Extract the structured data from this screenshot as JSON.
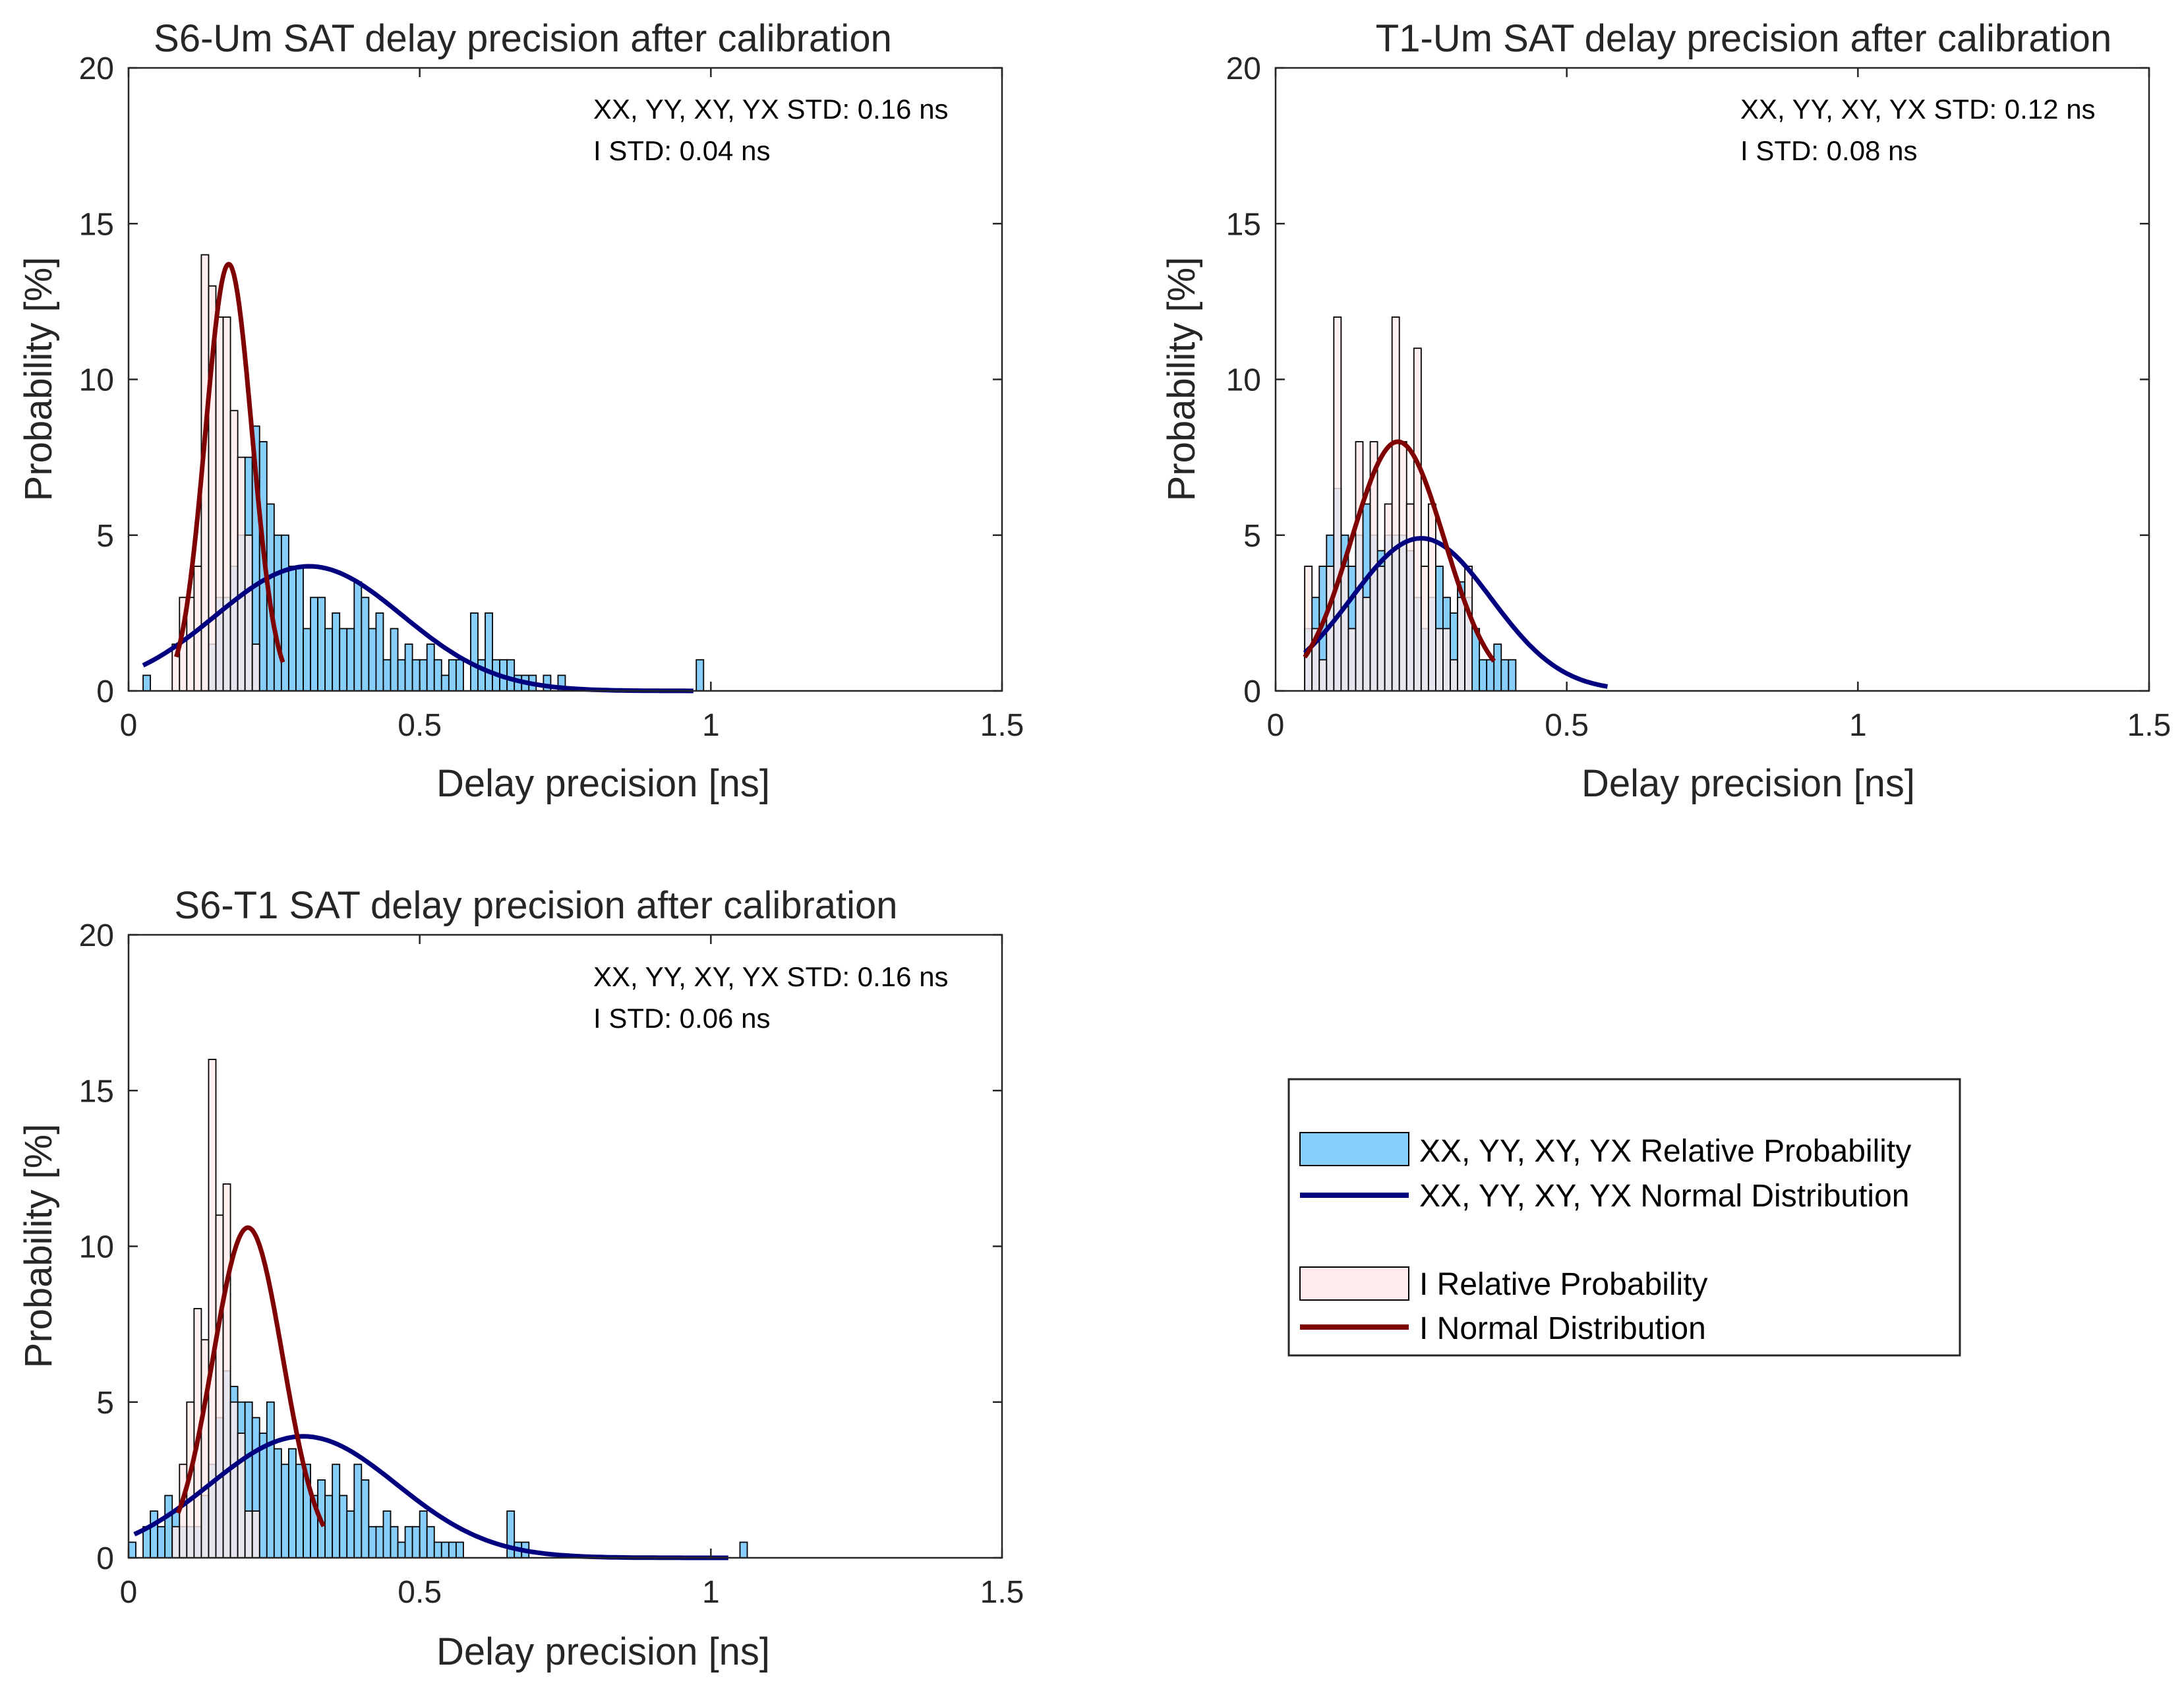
{
  "colors": {
    "pol_bar_fill": "#87CEFA",
    "i_bar_fill": "#FFEBEB",
    "pol_curve": "#00007F",
    "i_curve": "#7F0000",
    "axis": "#262626"
  },
  "legend": {
    "items": [
      {
        "label": "XX, YY, XY, YX Relative Probability",
        "kind": "bar",
        "color": "#87CEFA"
      },
      {
        "label": "XX, YY, XY, YX Normal Distribution",
        "kind": "line",
        "color": "#00007F"
      },
      {
        "label": "I Relative Probability",
        "kind": "bar",
        "color": "#FFEBEB"
      },
      {
        "label": "I Normal Distribution",
        "kind": "line",
        "color": "#7F0000"
      }
    ]
  },
  "chart_data": [
    {
      "type": "bar",
      "title": "S6-Um SAT delay precision after calibration",
      "xlabel": "Delay precision [ns]",
      "ylabel": "Probability [%]",
      "xlim": [
        0,
        1.5
      ],
      "ylim": [
        0,
        20
      ],
      "xticks": [
        "0",
        "0.5",
        "1",
        "1.5"
      ],
      "yticks": [
        "0",
        "5",
        "10",
        "15",
        "20"
      ],
      "bin_width": 0.0125,
      "annotations": [
        "XX, YY, XY, YX STD: 0.16 ns",
        "I STD: 0.04 ns"
      ],
      "series": [
        {
          "name": "XX, YY, XY, YX Relative Probability",
          "kind": "histogram",
          "x0": 0.025,
          "values": [
            0.5,
            0,
            0,
            0,
            0,
            0,
            0,
            0,
            0,
            1.5,
            3,
            3,
            4,
            5,
            7.5,
            8.5,
            8,
            6,
            5,
            5,
            4,
            4,
            2,
            3,
            3,
            2,
            2.5,
            2,
            2,
            3.5,
            3,
            2,
            2.5,
            1,
            2,
            1,
            1.5,
            1,
            1,
            1.5,
            1,
            0.5,
            1,
            1,
            0,
            2.5,
            1,
            2.5,
            1,
            1,
            1,
            0.5,
            0.5,
            0.5,
            0,
            0.5,
            0,
            0.5,
            0,
            0,
            0,
            0,
            0,
            0,
            0,
            0,
            0,
            0,
            0,
            0,
            0,
            0,
            0,
            0,
            0,
            0,
            1
          ]
        },
        {
          "name": "XX, YY, XY, YX Normal Distribution",
          "kind": "normal",
          "mean": 0.31,
          "peak": 4.0,
          "std": 0.16,
          "range": [
            0.025,
            0.97
          ]
        },
        {
          "name": "I Relative Probability",
          "kind": "histogram",
          "x0": 0.075,
          "values": [
            1.5,
            3,
            3,
            4,
            14,
            13,
            12,
            12,
            9,
            7.5,
            5,
            1.5
          ]
        },
        {
          "name": "I Normal Distribution",
          "kind": "normal",
          "mean": 0.172,
          "peak": 13.7,
          "std": 0.04,
          "range": [
            0.082,
            0.265
          ]
        }
      ]
    },
    {
      "type": "bar",
      "title": "T1-Um SAT delay precision after calibration",
      "xlabel": "Delay precision [ns]",
      "ylabel": "Probability [%]",
      "xlim": [
        0,
        1.5
      ],
      "ylim": [
        0,
        20
      ],
      "xticks": [
        "0",
        "0.5",
        "1",
        "1.5"
      ],
      "yticks": [
        "0",
        "5",
        "10",
        "15",
        "20"
      ],
      "bin_width": 0.0125,
      "annotations": [
        "XX, YY, XY, YX STD: 0.12 ns",
        "I STD: 0.08 ns"
      ],
      "series": [
        {
          "name": "XX, YY, XY, YX Relative Probability",
          "kind": "histogram",
          "x0": 0.05,
          "values": [
            2,
            3,
            4,
            5,
            6.5,
            5,
            4,
            5,
            6,
            5,
            4.5,
            5,
            5,
            5,
            4.5,
            3,
            2,
            3,
            4,
            3,
            2.5,
            3.5,
            3,
            2,
            1,
            1,
            1.5,
            1,
            1
          ]
        },
        {
          "name": "XX, YY, XY, YX Normal Distribution",
          "kind": "normal",
          "mean": 0.25,
          "peak": 4.9,
          "std": 0.12,
          "range": [
            0.05,
            0.57
          ]
        },
        {
          "name": "I Relative Probability",
          "kind": "histogram",
          "x0": 0.05,
          "values": [
            4,
            2,
            1,
            4,
            12,
            4,
            2,
            8,
            3,
            8,
            4,
            6,
            12,
            8,
            6,
            11,
            4,
            6,
            2,
            2,
            1,
            3,
            4
          ]
        },
        {
          "name": "I Normal Distribution",
          "kind": "normal",
          "mean": 0.21,
          "peak": 8.0,
          "std": 0.08,
          "range": [
            0.05,
            0.375
          ]
        }
      ]
    },
    {
      "type": "bar",
      "title": "S6-T1 SAT delay precision after calibration",
      "xlabel": "Delay precision [ns]",
      "ylabel": "Probability [%]",
      "xlim": [
        0,
        1.5
      ],
      "ylim": [
        0,
        20
      ],
      "xticks": [
        "0",
        "0.5",
        "1",
        "1.5"
      ],
      "yticks": [
        "0",
        "5",
        "10",
        "15",
        "20"
      ],
      "bin_width": 0.0125,
      "annotations": [
        "XX, YY, XY, YX STD: 0.16 ns",
        "I STD: 0.06 ns"
      ],
      "series": [
        {
          "name": "XX, YY, XY, YX Relative Probability",
          "kind": "histogram",
          "x0": 0.0,
          "values": [
            0.5,
            0,
            1,
            1.5,
            1,
            2,
            1.5,
            1,
            1,
            1,
            2,
            3,
            4.5,
            6,
            5.5,
            5,
            5,
            4.5,
            4,
            5,
            3.5,
            3,
            3.5,
            3,
            3,
            2,
            2.5,
            2,
            3,
            2,
            1.5,
            3,
            2.5,
            1,
            1,
            1.5,
            1,
            0.5,
            1,
            1,
            1.5,
            1,
            0.5,
            0.5,
            0.5,
            0.5,
            0,
            0,
            0,
            0,
            0,
            0,
            1.5,
            0.5,
            0.5,
            0,
            0,
            0,
            0,
            0,
            0,
            0,
            0,
            0,
            0,
            0,
            0,
            0,
            0,
            0,
            0,
            0,
            0,
            0,
            0,
            0,
            0,
            0,
            0,
            0,
            0,
            0,
            0,
            0,
            0.5
          ]
        },
        {
          "name": "XX, YY, XY, YX Normal Distribution",
          "kind": "normal",
          "mean": 0.3,
          "peak": 3.9,
          "std": 0.16,
          "range": [
            0.01,
            1.03
          ]
        },
        {
          "name": "I Relative Probability",
          "kind": "histogram",
          "x0": 0.075,
          "values": [
            1,
            3,
            5,
            8,
            7,
            16,
            11,
            12,
            5,
            4,
            1.5,
            1.5
          ]
        },
        {
          "name": "I Normal Distribution",
          "kind": "normal",
          "mean": 0.205,
          "peak": 10.6,
          "std": 0.06,
          "range": [
            0.085,
            0.335
          ]
        }
      ]
    }
  ]
}
